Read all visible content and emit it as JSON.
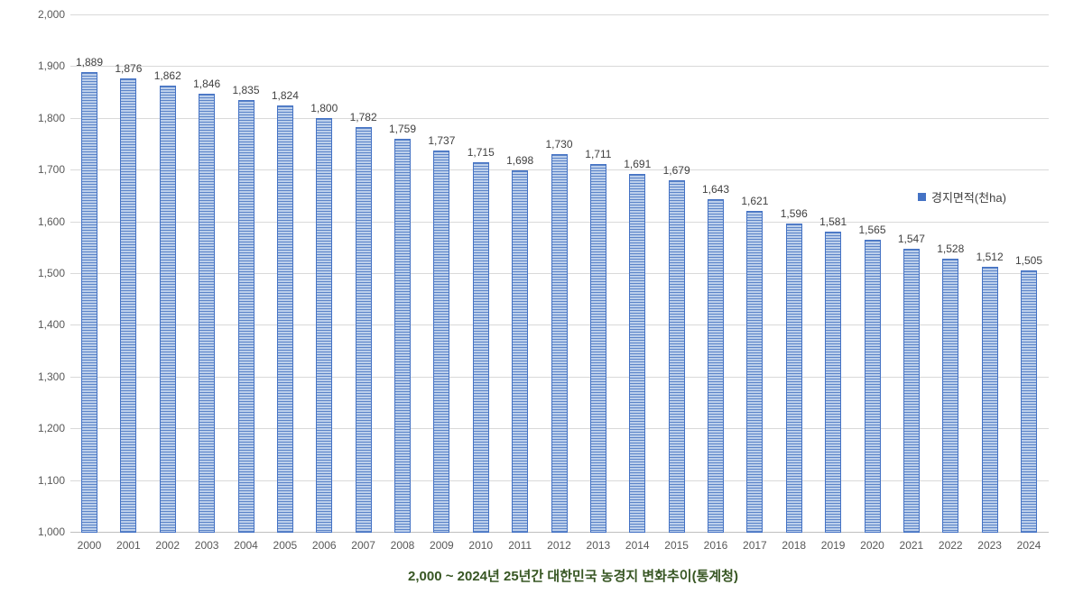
{
  "chart_data": {
    "type": "bar",
    "title": "2,000 ~ 2024년 25년간 대한민국 농경지 변화추이(통계청)",
    "legend": {
      "label": "경지면적(천ha)",
      "position": "right-middle"
    },
    "xlabel": "",
    "ylabel": "",
    "ylim": [
      1000,
      2000
    ],
    "y_tick_interval": 100,
    "y_tick_labels": [
      "1,000",
      "1,100",
      "1,200",
      "1,300",
      "1,400",
      "1,500",
      "1,600",
      "1,700",
      "1,800",
      "1,900",
      "2,000"
    ],
    "grid": true,
    "categories": [
      "2000",
      "2001",
      "2002",
      "2003",
      "2004",
      "2005",
      "2006",
      "2007",
      "2008",
      "2009",
      "2010",
      "2011",
      "2012",
      "2013",
      "2014",
      "2015",
      "2016",
      "2017",
      "2018",
      "2019",
      "2020",
      "2021",
      "2022",
      "2023",
      "2024"
    ],
    "series": [
      {
        "name": "경지면적(천ha)",
        "values": [
          1889,
          1876,
          1862,
          1846,
          1835,
          1824,
          1800,
          1782,
          1759,
          1737,
          1715,
          1698,
          1730,
          1711,
          1691,
          1679,
          1643,
          1621,
          1596,
          1581,
          1565,
          1547,
          1528,
          1512,
          1505
        ]
      }
    ],
    "value_labels": [
      "1,889",
      "1,876",
      "1,862",
      "1,846",
      "1,835",
      "1,824",
      "1,800",
      "1,782",
      "1,759",
      "1,737",
      "1,715",
      "1,698",
      "1,730",
      "1,711",
      "1,691",
      "1,679",
      "1,643",
      "1,621",
      "1,596",
      "1,581",
      "1,565",
      "1,547",
      "1,528",
      "1,512",
      "1,505"
    ]
  },
  "colors": {
    "bar_border": "#4472c4",
    "bar_stripe": "#5b84c8",
    "bar_fill": "#bccfeb",
    "gridline": "#d9d9d9",
    "axis_line": "#bfbfbf",
    "tick_label": "#595959",
    "data_label": "#404040",
    "legend_marker": "#4472c4",
    "title": "#375623"
  }
}
